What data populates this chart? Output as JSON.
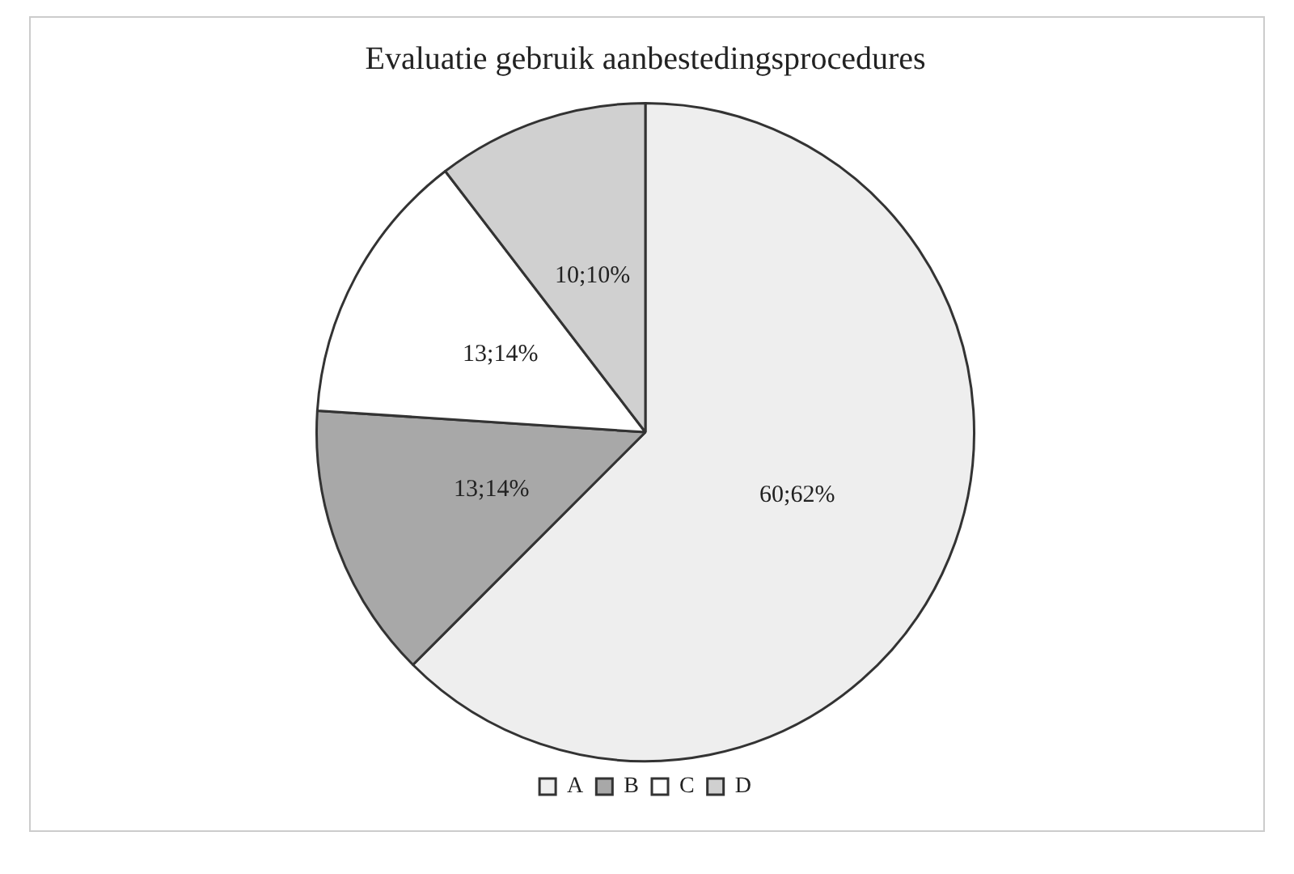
{
  "chart_data": {
    "type": "pie",
    "title": "Evaluatie gebruik aanbestedingsprocedures",
    "categories": [
      "A",
      "B",
      "C",
      "D"
    ],
    "values": [
      60,
      13,
      13,
      10
    ],
    "colors": [
      "#eeeeee",
      "#a8a8a8",
      "#ffffff",
      "#d0d0d0"
    ],
    "value_labels": [
      "60;62%",
      "13;14%",
      "13;14%",
      "10;10%"
    ],
    "legend": "bottom"
  }
}
